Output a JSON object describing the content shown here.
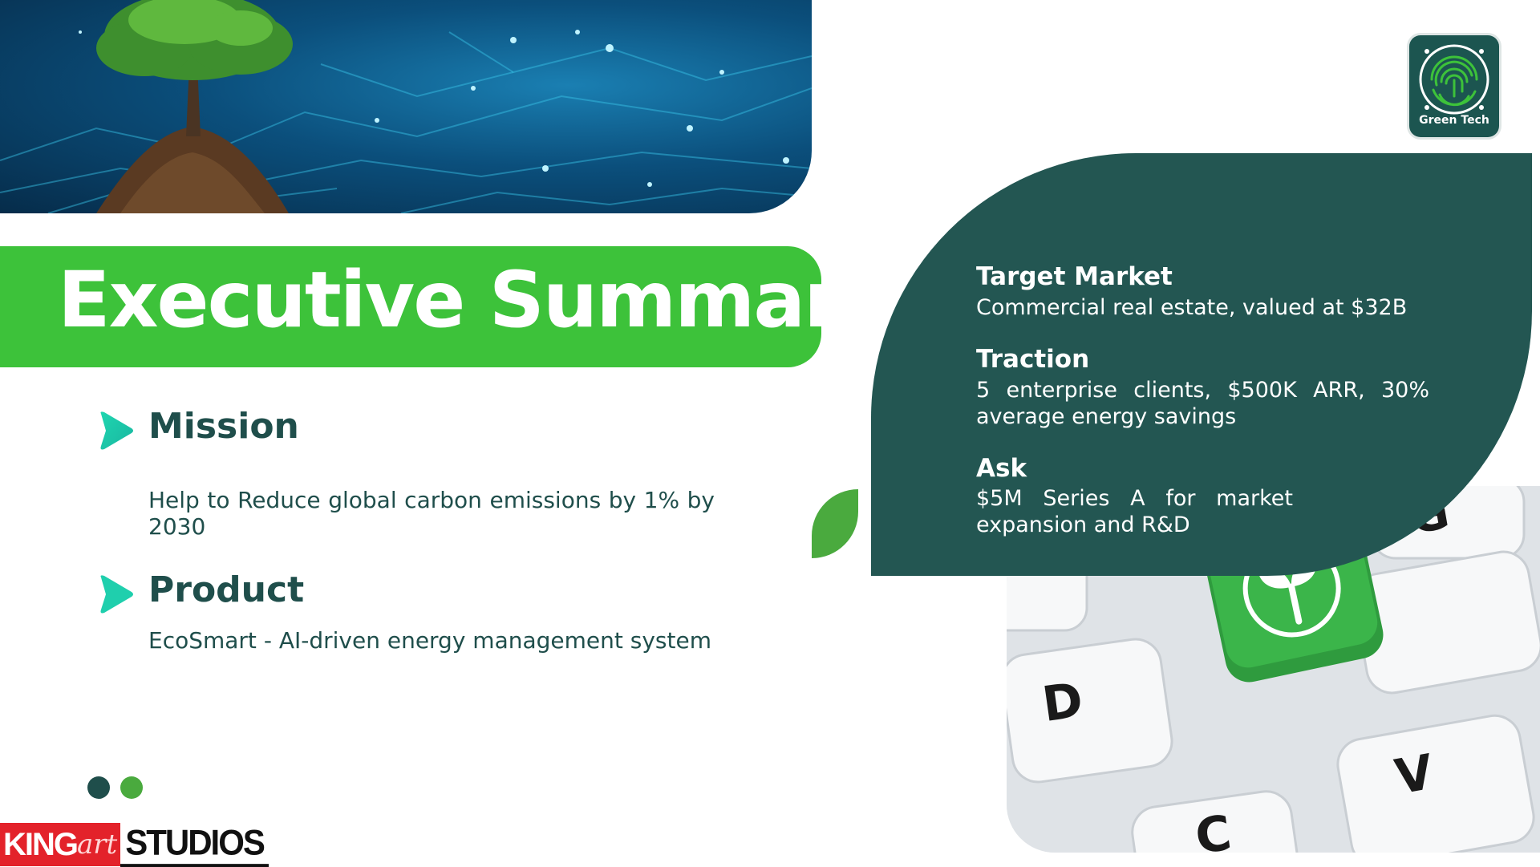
{
  "slide": {
    "title": "Executive Summary"
  },
  "sections": {
    "mission": {
      "heading": "Mission",
      "body": "Help to Reduce global carbon emissions by 1% by 2030"
    },
    "product": {
      "heading": "Product",
      "body": "EcoSmart - AI-driven energy management system"
    }
  },
  "panel": {
    "target_market": {
      "heading": "Target Market",
      "body": "Commercial real estate, valued at $32B"
    },
    "traction": {
      "heading": "Traction",
      "body": "5 enterprise clients, $500K ARR, 30% average energy savings"
    },
    "ask": {
      "heading": "Ask",
      "body": "$5M Series A for market expansion and R&D"
    }
  },
  "logo": {
    "text": "Green Tech",
    "icon": "fingerprint-icon"
  },
  "keyboard": {
    "keys": [
      "D",
      "G",
      "C",
      "V"
    ],
    "green_key_icon": "sprout-icon"
  },
  "brand": {
    "king": "KING",
    "art": "art",
    "studios": "STUDIOS"
  },
  "colors": {
    "accent_green": "#3dc23a",
    "dark_teal": "#235652",
    "leaf_green": "#4aaa3e",
    "heading_text": "#1f4e4b",
    "dot_dark": "#1f4e4b",
    "dot_green": "#4aaa3e"
  }
}
